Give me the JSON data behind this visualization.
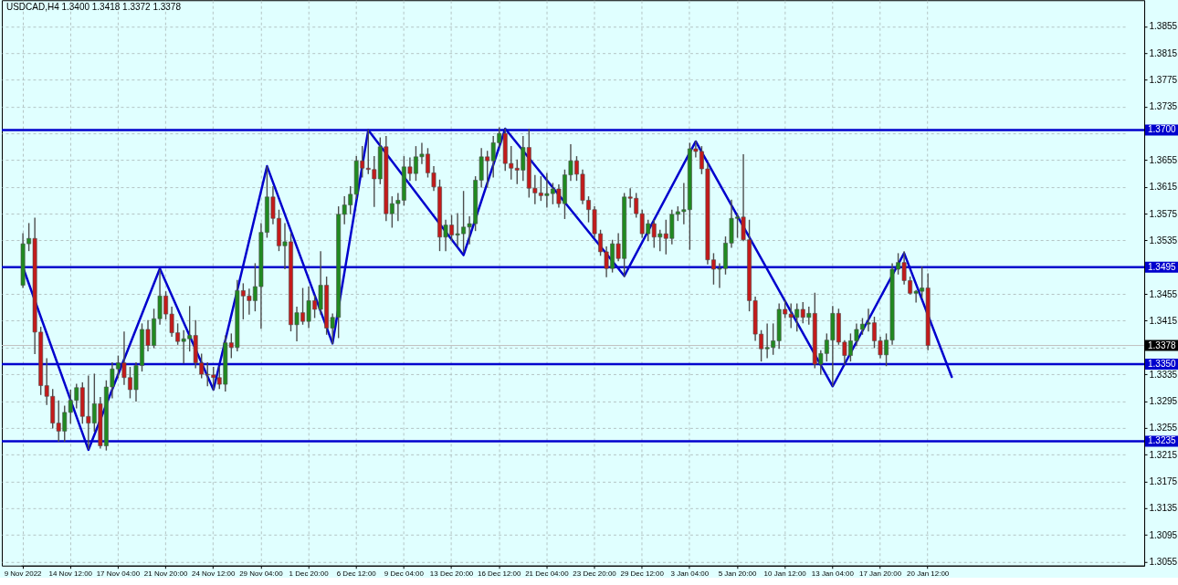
{
  "chart_data": {
    "type": "candlestick",
    "title": "USDCAD,H4 1.3400 1.3418 1.3372 1.3378",
    "categories": [
      "9 Nov 2022",
      null,
      null,
      null,
      null,
      null,
      null,
      null,
      "14 Nov 12:00",
      null,
      null,
      null,
      null,
      null,
      null,
      null,
      "17 Nov 04:00",
      null,
      null,
      null,
      null,
      null,
      null,
      null,
      "21 Nov 20:00",
      null,
      null,
      null,
      null,
      null,
      null,
      null,
      "24 Nov 12:00",
      null,
      null,
      null,
      null,
      null,
      null,
      null,
      "29 Nov 04:00",
      null,
      null,
      null,
      null,
      null,
      null,
      null,
      "1 Dec 20:00",
      null,
      null,
      null,
      null,
      null,
      null,
      null,
      "6 Dec 12:00",
      null,
      null,
      null,
      null,
      null,
      null,
      null,
      "9 Dec 04:00",
      null,
      null,
      null,
      null,
      null,
      null,
      null,
      "13 Dec 20:00",
      null,
      null,
      null,
      null,
      null,
      null,
      null,
      "16 Dec 12:00",
      null,
      null,
      null,
      null,
      null,
      null,
      null,
      "21 Dec 04:00",
      null,
      null,
      null,
      null,
      null,
      null,
      null,
      "23 Dec 20:00",
      null,
      null,
      null,
      null,
      null,
      null,
      null,
      "29 Dec 12:00",
      null,
      null,
      null,
      null,
      null,
      null,
      null,
      "3 Jan 04:00",
      null,
      null,
      null,
      null,
      null,
      null,
      null,
      "5 Jan 20:00",
      null,
      null,
      null,
      null,
      null,
      null,
      null,
      "10 Jan 12:00",
      null,
      null,
      null,
      null,
      null,
      null,
      null,
      "13 Jan 04:00",
      null,
      null,
      null,
      null,
      null,
      null,
      null,
      "17 Jan 20:00",
      null,
      null,
      null,
      null,
      null,
      null,
      null,
      "20 Jan 12:00",
      null,
      null,
      null,
      null,
      null,
      null,
      null,
      null,
      null,
      null,
      null,
      null,
      null,
      null,
      null,
      null,
      null,
      null,
      null,
      null,
      null,
      null,
      null,
      null,
      null,
      null,
      null,
      null,
      null,
      null,
      null,
      null,
      null,
      null,
      null,
      null
    ],
    "ohlc": [
      [
        1.3468,
        1.3545,
        1.3465,
        1.353
      ],
      [
        1.353,
        1.356,
        1.352,
        1.3538
      ],
      [
        1.3538,
        1.3568,
        1.3366,
        1.3398
      ],
      [
        1.3398,
        1.3405,
        1.3305,
        1.3318
      ],
      [
        1.3318,
        1.3358,
        1.329,
        1.3302
      ],
      [
        1.3302,
        1.3312,
        1.3255,
        1.3262
      ],
      [
        1.3262,
        1.3295,
        1.3235,
        1.325
      ],
      [
        1.325,
        1.3287,
        1.3235,
        1.3278
      ],
      [
        1.3278,
        1.3311,
        1.3262,
        1.3296
      ],
      [
        1.3296,
        1.332,
        1.3285,
        1.3315
      ],
      [
        1.3315,
        1.3322,
        1.3262,
        1.3272
      ],
      [
        1.3272,
        1.3332,
        1.3224,
        1.3262
      ],
      [
        1.3262,
        1.3335,
        1.325,
        1.3291
      ],
      [
        1.3291,
        1.33,
        1.3225,
        1.3228
      ],
      [
        1.3228,
        1.3325,
        1.3222,
        1.3316
      ],
      [
        1.3316,
        1.3352,
        1.33,
        1.3343
      ],
      [
        1.3343,
        1.3362,
        1.333,
        1.3352
      ],
      [
        1.3352,
        1.3398,
        1.332,
        1.333
      ],
      [
        1.333,
        1.3345,
        1.33,
        1.3312
      ],
      [
        1.3312,
        1.3352,
        1.3295,
        1.3348
      ],
      [
        1.3348,
        1.341,
        1.334,
        1.3402
      ],
      [
        1.3402,
        1.3415,
        1.337,
        1.3378
      ],
      [
        1.3378,
        1.3432,
        1.3375,
        1.3418
      ],
      [
        1.3418,
        1.349,
        1.341,
        1.3452
      ],
      [
        1.3452,
        1.3458,
        1.3418,
        1.3425
      ],
      [
        1.3425,
        1.3435,
        1.3392,
        1.3397
      ],
      [
        1.3397,
        1.341,
        1.338,
        1.3384
      ],
      [
        1.3384,
        1.34,
        1.3352,
        1.3388
      ],
      [
        1.3388,
        1.3436,
        1.337,
        1.3393
      ],
      [
        1.3393,
        1.3415,
        1.3345,
        1.3352
      ],
      [
        1.3352,
        1.3365,
        1.333,
        1.3335
      ],
      [
        1.3335,
        1.3352,
        1.3318,
        1.3334
      ],
      [
        1.3334,
        1.3345,
        1.3312,
        1.333
      ],
      [
        1.333,
        1.3346,
        1.3314,
        1.332
      ],
      [
        1.332,
        1.3392,
        1.331,
        1.3382
      ],
      [
        1.3382,
        1.3395,
        1.336,
        1.3375
      ],
      [
        1.3375,
        1.3475,
        1.337,
        1.346
      ],
      [
        1.346,
        1.347,
        1.3418,
        1.3452
      ],
      [
        1.3452,
        1.3462,
        1.3425,
        1.3445
      ],
      [
        1.3445,
        1.35,
        1.343,
        1.3466
      ],
      [
        1.3466,
        1.356,
        1.3404,
        1.3547
      ],
      [
        1.3547,
        1.3645,
        1.354,
        1.36
      ],
      [
        1.36,
        1.3615,
        1.356,
        1.3568
      ],
      [
        1.3568,
        1.358,
        1.352,
        1.3527
      ],
      [
        1.3527,
        1.356,
        1.3493,
        1.3533
      ],
      [
        1.3533,
        1.3545,
        1.34,
        1.3409
      ],
      [
        1.3409,
        1.3435,
        1.3385,
        1.3427
      ],
      [
        1.3427,
        1.3463,
        1.341,
        1.3414
      ],
      [
        1.3414,
        1.3465,
        1.3405,
        1.3445
      ],
      [
        1.3445,
        1.3452,
        1.342,
        1.3432
      ],
      [
        1.3432,
        1.3518,
        1.3425,
        1.3468
      ],
      [
        1.3468,
        1.348,
        1.3395,
        1.3404
      ],
      [
        1.3404,
        1.3425,
        1.3381,
        1.342
      ],
      [
        1.342,
        1.3585,
        1.339,
        1.3574
      ],
      [
        1.3574,
        1.36,
        1.356,
        1.3588
      ],
      [
        1.3588,
        1.3615,
        1.3575,
        1.3604
      ],
      [
        1.3604,
        1.366,
        1.3598,
        1.3654
      ],
      [
        1.3654,
        1.3675,
        1.363,
        1.3643
      ],
      [
        1.3643,
        1.37,
        1.3635,
        1.3641
      ],
      [
        1.3641,
        1.366,
        1.3586,
        1.3627
      ],
      [
        1.3627,
        1.3688,
        1.362,
        1.3675
      ],
      [
        1.3675,
        1.369,
        1.3565,
        1.3575
      ],
      [
        1.3575,
        1.36,
        1.3555,
        1.359
      ],
      [
        1.359,
        1.3605,
        1.3565,
        1.3595
      ],
      [
        1.3595,
        1.366,
        1.3588,
        1.3645
      ],
      [
        1.3645,
        1.3658,
        1.3625,
        1.3635
      ],
      [
        1.3635,
        1.3675,
        1.3625,
        1.366
      ],
      [
        1.366,
        1.368,
        1.365,
        1.3664
      ],
      [
        1.3664,
        1.3672,
        1.363,
        1.3636
      ],
      [
        1.3636,
        1.3645,
        1.361,
        1.3615
      ],
      [
        1.3615,
        1.3625,
        1.352,
        1.354
      ],
      [
        1.354,
        1.3565,
        1.352,
        1.3558
      ],
      [
        1.3558,
        1.3572,
        1.3535,
        1.3543
      ],
      [
        1.3543,
        1.3575,
        1.3527,
        1.3545
      ],
      [
        1.3545,
        1.3608,
        1.3518,
        1.3555
      ],
      [
        1.3555,
        1.357,
        1.353,
        1.356
      ],
      [
        1.356,
        1.363,
        1.355,
        1.3625
      ],
      [
        1.3625,
        1.3672,
        1.3615,
        1.366
      ],
      [
        1.366,
        1.3668,
        1.3615,
        1.3654
      ],
      [
        1.3654,
        1.369,
        1.363,
        1.3681
      ],
      [
        1.3681,
        1.3703,
        1.3675,
        1.3695
      ],
      [
        1.3695,
        1.3702,
        1.364,
        1.365
      ],
      [
        1.365,
        1.3675,
        1.3627,
        1.3643
      ],
      [
        1.3643,
        1.3655,
        1.362,
        1.364
      ],
      [
        1.364,
        1.369,
        1.3625,
        1.3674
      ],
      [
        1.3674,
        1.3701,
        1.36,
        1.3613
      ],
      [
        1.3613,
        1.3632,
        1.359,
        1.3606
      ],
      [
        1.3606,
        1.363,
        1.3595,
        1.3602
      ],
      [
        1.3602,
        1.3635,
        1.3585,
        1.3605
      ],
      [
        1.3605,
        1.362,
        1.359,
        1.3612
      ],
      [
        1.3612,
        1.3618,
        1.3585,
        1.359
      ],
      [
        1.359,
        1.364,
        1.3568,
        1.3633
      ],
      [
        1.3633,
        1.3678,
        1.3625,
        1.3654
      ],
      [
        1.3654,
        1.366,
        1.3625,
        1.3634
      ],
      [
        1.3634,
        1.364,
        1.359,
        1.3595
      ],
      [
        1.3595,
        1.36,
        1.3563,
        1.3581
      ],
      [
        1.3581,
        1.3585,
        1.354,
        1.3545
      ],
      [
        1.3545,
        1.355,
        1.3513,
        1.3518
      ],
      [
        1.3518,
        1.3525,
        1.3481,
        1.3493
      ],
      [
        1.3493,
        1.3535,
        1.3488,
        1.353
      ],
      [
        1.353,
        1.3545,
        1.3505,
        1.3508
      ],
      [
        1.3508,
        1.3605,
        1.3481,
        1.36
      ],
      [
        1.36,
        1.3612,
        1.3585,
        1.3598
      ],
      [
        1.3598,
        1.3605,
        1.357,
        1.3575
      ],
      [
        1.3575,
        1.358,
        1.354,
        1.3545
      ],
      [
        1.3545,
        1.3565,
        1.3535,
        1.356
      ],
      [
        1.356,
        1.3565,
        1.3525,
        1.354
      ],
      [
        1.354,
        1.355,
        1.352,
        1.3545
      ],
      [
        1.3545,
        1.3565,
        1.3515,
        1.3538
      ],
      [
        1.3538,
        1.358,
        1.353,
        1.3574
      ],
      [
        1.3574,
        1.3585,
        1.3565,
        1.3578
      ],
      [
        1.3578,
        1.362,
        1.356,
        1.3581
      ],
      [
        1.3581,
        1.368,
        1.3522,
        1.3672
      ],
      [
        1.3672,
        1.3683,
        1.366,
        1.3668
      ],
      [
        1.3668,
        1.3675,
        1.3635,
        1.3642
      ],
      [
        1.3642,
        1.365,
        1.35,
        1.3506
      ],
      [
        1.3506,
        1.3515,
        1.347,
        1.3492
      ],
      [
        1.3492,
        1.35,
        1.3465,
        1.3493
      ],
      [
        1.3493,
        1.354,
        1.3485,
        1.3531
      ],
      [
        1.3531,
        1.3595,
        1.3525,
        1.3568
      ],
      [
        1.3568,
        1.3575,
        1.354,
        1.357
      ],
      [
        1.357,
        1.3663,
        1.3535,
        1.3536
      ],
      [
        1.3536,
        1.3565,
        1.343,
        1.3445
      ],
      [
        1.3445,
        1.345,
        1.3386,
        1.3395
      ],
      [
        1.3395,
        1.34,
        1.3355,
        1.3373
      ],
      [
        1.3373,
        1.341,
        1.336,
        1.3375
      ],
      [
        1.3375,
        1.341,
        1.3365,
        1.3385
      ],
      [
        1.3385,
        1.344,
        1.3374,
        1.3432
      ],
      [
        1.3432,
        1.3445,
        1.342,
        1.3425
      ],
      [
        1.3425,
        1.344,
        1.3405,
        1.342
      ],
      [
        1.342,
        1.344,
        1.34,
        1.3432
      ],
      [
        1.3432,
        1.3442,
        1.3412,
        1.342
      ],
      [
        1.342,
        1.3435,
        1.341,
        1.3426
      ],
      [
        1.3426,
        1.3456,
        1.3345,
        1.335
      ],
      [
        1.335,
        1.337,
        1.3335,
        1.3366
      ],
      [
        1.3366,
        1.3395,
        1.3355,
        1.3386
      ],
      [
        1.3386,
        1.3436,
        1.3318,
        1.3426
      ],
      [
        1.3426,
        1.3432,
        1.338,
        1.3383
      ],
      [
        1.3383,
        1.3385,
        1.335,
        1.3363
      ],
      [
        1.3363,
        1.3395,
        1.3355,
        1.3385
      ],
      [
        1.3385,
        1.341,
        1.3378,
        1.3402
      ],
      [
        1.3402,
        1.3418,
        1.3395,
        1.341
      ],
      [
        1.341,
        1.3432,
        1.34,
        1.3412
      ],
      [
        1.3412,
        1.342,
        1.3375,
        1.3385
      ],
      [
        1.3385,
        1.339,
        1.336,
        1.3364
      ],
      [
        1.3364,
        1.3395,
        1.3348,
        1.3386
      ],
      [
        1.3386,
        1.35,
        1.338,
        1.3492
      ],
      [
        1.3492,
        1.3515,
        1.3485,
        1.3502
      ],
      [
        1.3502,
        1.3518,
        1.347,
        1.3475
      ],
      [
        1.3475,
        1.348,
        1.3455,
        1.3456
      ],
      [
        1.3456,
        1.346,
        1.3443,
        1.3459
      ],
      [
        1.3459,
        1.3495,
        1.345,
        1.3464
      ],
      [
        1.3464,
        1.3485,
        1.3372,
        1.3378
      ],
      null,
      null,
      null,
      null,
      null,
      null,
      null,
      null,
      null,
      null,
      null,
      null,
      null,
      null,
      null,
      null,
      null,
      null,
      null,
      null,
      null,
      null,
      null,
      null,
      null,
      null,
      null,
      null,
      null,
      null,
      null,
      null,
      null,
      null,
      null,
      null
    ],
    "colors": [
      "#208a20",
      "#208a20",
      "#c41a1a",
      "#c41a1a",
      "#c41a1a",
      "#c41a1a",
      "#c41a1a",
      "#208a20",
      "#208a20",
      "#208a20",
      "#c41a1a",
      "#c41a1a",
      "#208a20",
      "#c41a1a",
      "#208a20",
      "#208a20",
      "#208a20",
      "#c41a1a",
      "#c41a1a",
      "#208a20",
      "#208a20",
      "#c41a1a",
      "#208a20",
      "#208a20",
      "#c41a1a",
      "#c41a1a",
      "#c41a1a",
      "#208a20",
      "#208a20",
      "#c41a1a",
      "#c41a1a",
      "#c41a1a",
      "#c41a1a",
      "#c41a1a",
      "#208a20",
      "#c41a1a",
      "#208a20",
      "#c41a1a",
      "#c41a1a",
      "#208a20",
      "#208a20",
      "#208a20",
      "#c41a1a",
      "#c41a1a",
      "#208a20",
      "#c41a1a",
      "#208a20",
      "#c41a1a",
      "#208a20",
      "#c41a1a",
      "#208a20",
      "#c41a1a",
      "#208a20",
      "#208a20",
      "#208a20",
      "#208a20",
      "#208a20",
      "#c41a1a",
      "#c41a1a",
      "#c41a1a",
      "#208a20",
      "#c41a1a",
      "#208a20",
      "#208a20",
      "#208a20",
      "#c41a1a",
      "#208a20",
      "#208a20",
      "#c41a1a",
      "#c41a1a",
      "#c41a1a",
      "#208a20",
      "#c41a1a",
      "#208a20",
      "#208a20",
      "#208a20",
      "#208a20",
      "#208a20",
      "#c41a1a",
      "#208a20",
      "#208a20",
      "#c41a1a",
      "#c41a1a",
      "#c41a1a",
      "#208a20",
      "#c41a1a",
      "#c41a1a",
      "#c41a1a",
      "#208a20",
      "#208a20",
      "#c41a1a",
      "#208a20",
      "#208a20",
      "#c41a1a",
      "#c41a1a",
      "#c41a1a",
      "#c41a1a",
      "#c41a1a",
      "#c41a1a",
      "#208a20",
      "#c41a1a",
      "#208a20",
      "#c41a1a",
      "#c41a1a",
      "#c41a1a",
      "#208a20",
      "#c41a1a",
      "#208a20",
      "#c41a1a",
      "#208a20",
      "#208a20",
      "#208a20",
      "#208a20",
      "#c41a1a",
      "#c41a1a",
      "#c41a1a",
      "#c41a1a",
      "#208a20",
      "#208a20",
      "#208a20",
      "#208a20",
      "#c41a1a",
      "#c41a1a",
      "#c41a1a",
      "#c41a1a",
      "#208a20",
      "#208a20",
      "#208a20",
      "#c41a1a",
      "#c41a1a",
      "#208a20",
      "#c41a1a",
      "#208a20",
      "#c41a1a",
      "#208a20",
      "#208a20",
      "#208a20",
      "#c41a1a",
      "#c41a1a",
      "#208a20",
      "#208a20",
      "#208a20",
      "#208a20",
      "#c41a1a",
      "#c41a1a",
      "#208a20",
      "#208a20",
      "#208a20",
      "#c41a1a",
      "#c41a1a",
      "#208a20",
      "#208a20",
      "#c41a1a",
      null,
      null,
      null,
      null,
      null,
      null,
      null,
      null,
      null,
      null,
      null,
      null,
      null,
      null,
      null,
      null,
      null,
      null,
      null,
      null,
      null,
      null,
      null,
      null,
      null,
      null,
      null,
      null,
      null,
      null,
      null,
      null,
      null,
      null,
      null,
      null
    ],
    "series": [
      {
        "type": "line",
        "color": "#0000cd",
        "values": [
          1.3495,
          null,
          null,
          null,
          null,
          null,
          null,
          null,
          null,
          null,
          null,
          1.3222,
          null,
          null,
          null,
          null,
          null,
          null,
          null,
          null,
          null,
          null,
          null,
          1.3493,
          null,
          null,
          null,
          null,
          null,
          null,
          null,
          null,
          1.3312,
          null,
          null,
          null,
          null,
          null,
          null,
          null,
          null,
          1.3646,
          null,
          null,
          null,
          null,
          null,
          null,
          null,
          null,
          null,
          null,
          1.3381,
          null,
          null,
          null,
          null,
          null,
          1.37,
          null,
          null,
          null,
          null,
          null,
          null,
          null,
          null,
          null,
          null,
          null,
          null,
          null,
          null,
          null,
          1.3513,
          null,
          null,
          null,
          null,
          null,
          null,
          1.3702,
          null,
          null,
          null,
          null,
          null,
          null,
          null,
          null,
          null,
          null,
          null,
          null,
          null,
          null,
          null,
          null,
          null,
          null,
          null,
          1.3482,
          null,
          null,
          null,
          null,
          null,
          null,
          null,
          null,
          null,
          null,
          null,
          1.3683,
          null,
          null,
          null,
          null,
          null,
          null,
          null,
          null,
          null,
          null,
          null,
          null,
          null,
          null,
          null,
          null,
          null,
          null,
          null,
          null,
          null,
          null,
          1.3317,
          null,
          null,
          null,
          null,
          null,
          null,
          null,
          null,
          null,
          null,
          null,
          1.3516,
          null,
          null,
          null,
          null,
          null,
          null,
          null,
          1.3331,
          null,
          null,
          null,
          null,
          null,
          null,
          null,
          null,
          null,
          null,
          null,
          null,
          null,
          null,
          null,
          null,
          null,
          null,
          null,
          null,
          null,
          null,
          null,
          null,
          null,
          null,
          null,
          null,
          null,
          null,
          null,
          null
        ]
      }
    ],
    "ylim": [
      1.3049,
      1.3894
    ],
    "yticks": [
      1.3055,
      1.3095,
      1.3135,
      1.3175,
      1.3215,
      1.3255,
      1.3295,
      1.3335,
      {
        "value": 1.3375,
        "label": null
      },
      1.3415,
      1.3455,
      {
        "value": 1.3495,
        "label": null
      },
      1.3535,
      1.3575,
      1.3615,
      1.3655,
      {
        "value": 1.3695,
        "label": null
      },
      1.3735,
      1.3775,
      1.3815,
      1.3855
    ],
    "grid": true,
    "ref_lines": [
      {
        "axis": "y",
        "value": 1.37,
        "label": "1.3700",
        "color": "#0000cd"
      },
      {
        "axis": "y",
        "value": 1.3495,
        "label": "1.3495",
        "color": "#0000cd"
      },
      {
        "axis": "y",
        "value": 1.335,
        "label": "1.3350",
        "color": "#0000cd"
      },
      {
        "axis": "y",
        "value": 1.3235,
        "label": "1.3235",
        "color": "#0000cd"
      },
      {
        "axis": "y",
        "value": 1.3378,
        "color": "#c0c0c0"
      }
    ],
    "annotations": [
      {
        "text": "1.3378",
        "y": 1.3378
      }
    ]
  }
}
